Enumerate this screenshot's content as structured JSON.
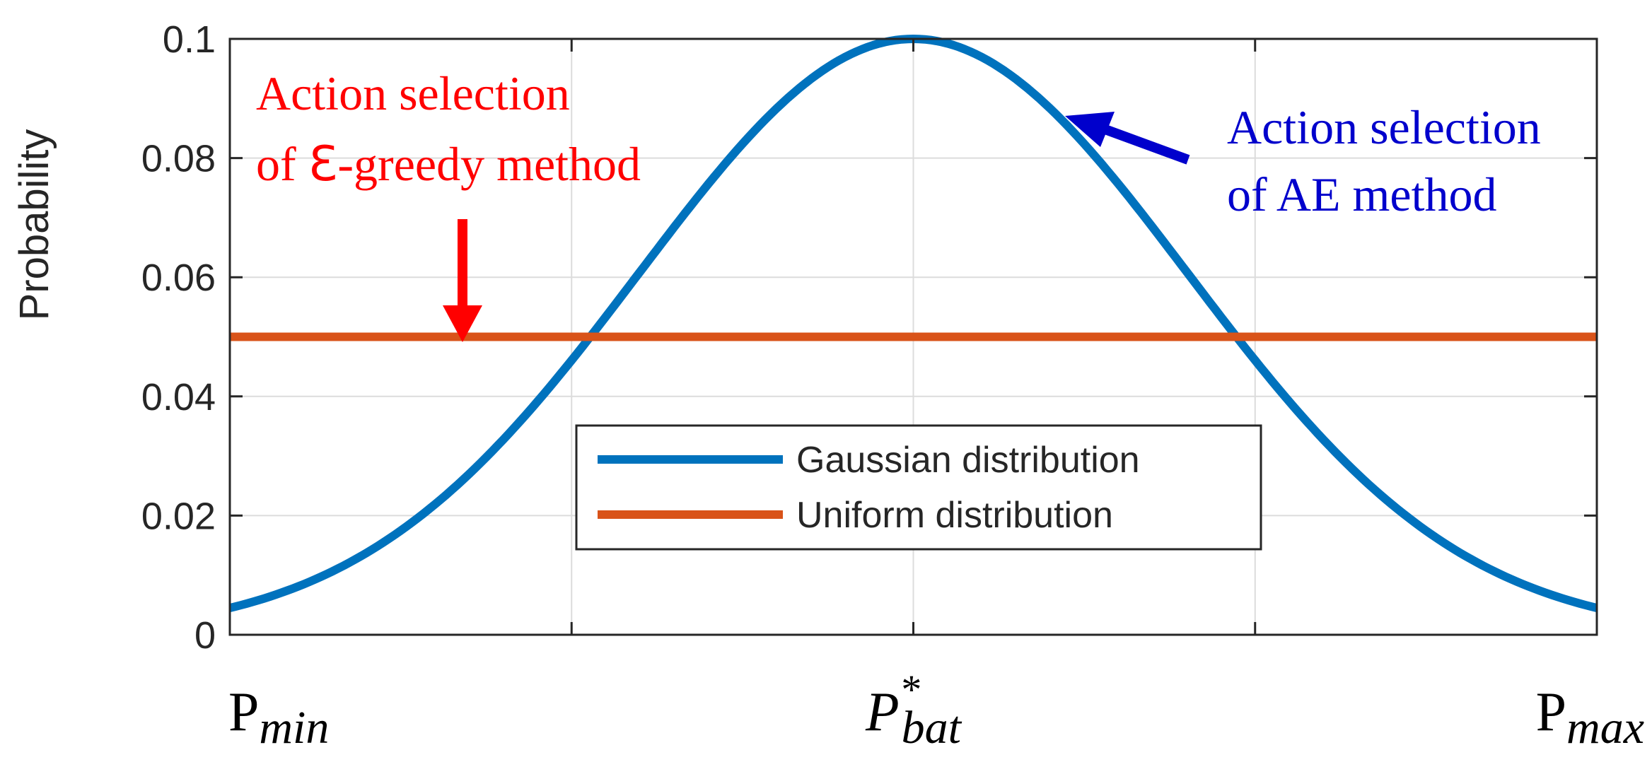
{
  "chart_data": {
    "type": "line",
    "ylabel": "Probability",
    "ylim": [
      0,
      0.1
    ],
    "yticks": [
      0,
      0.02,
      0.04,
      0.06,
      0.08,
      0.1
    ],
    "ytick_labels": [
      "0",
      "0.02",
      "0.04",
      "0.06",
      "0.08",
      "0.1"
    ],
    "xlim": [
      0,
      1
    ],
    "xticks": [
      0,
      0.25,
      0.5,
      0.75,
      1
    ],
    "x_category_labels": [
      {
        "main": "P",
        "sub": "min",
        "sup": "",
        "italic_main": false,
        "at": 0
      },
      {
        "main": "P",
        "sub": "bat",
        "sup": "*",
        "italic_main": true,
        "at": 0.5
      },
      {
        "main": "P",
        "sub": "max",
        "sup": "",
        "italic_main": false,
        "at": 1
      }
    ],
    "grid": true,
    "legend_position": "lower-center",
    "series": [
      {
        "name": "Gaussian distribution",
        "color": "#0072BD",
        "kind": "gaussian",
        "peak": 0.1,
        "center": 0.5,
        "edge_value": 0.0045,
        "x": [
          0,
          0.1,
          0.2,
          0.25,
          0.3,
          0.4,
          0.5,
          0.6,
          0.7,
          0.75,
          0.8,
          0.9,
          1
        ],
        "values": [
          0.0045,
          0.013,
          0.029,
          0.04,
          0.054,
          0.083,
          0.1,
          0.083,
          0.054,
          0.04,
          0.029,
          0.013,
          0.0045
        ]
      },
      {
        "name": "Uniform distribution",
        "color": "#D95319",
        "kind": "constant",
        "x": [
          0,
          1
        ],
        "values": [
          0.05,
          0.05
        ]
      }
    ],
    "annotations": [
      {
        "lines": [
          "Action selection",
          "of ℇ-greedy method"
        ],
        "color": "#FF0000",
        "arrow_target": [
          0.17,
          0.05
        ]
      },
      {
        "lines": [
          "Action selection",
          "of AE method"
        ],
        "color": "#0000CC",
        "arrow_target": [
          0.61,
          0.087
        ]
      }
    ]
  }
}
